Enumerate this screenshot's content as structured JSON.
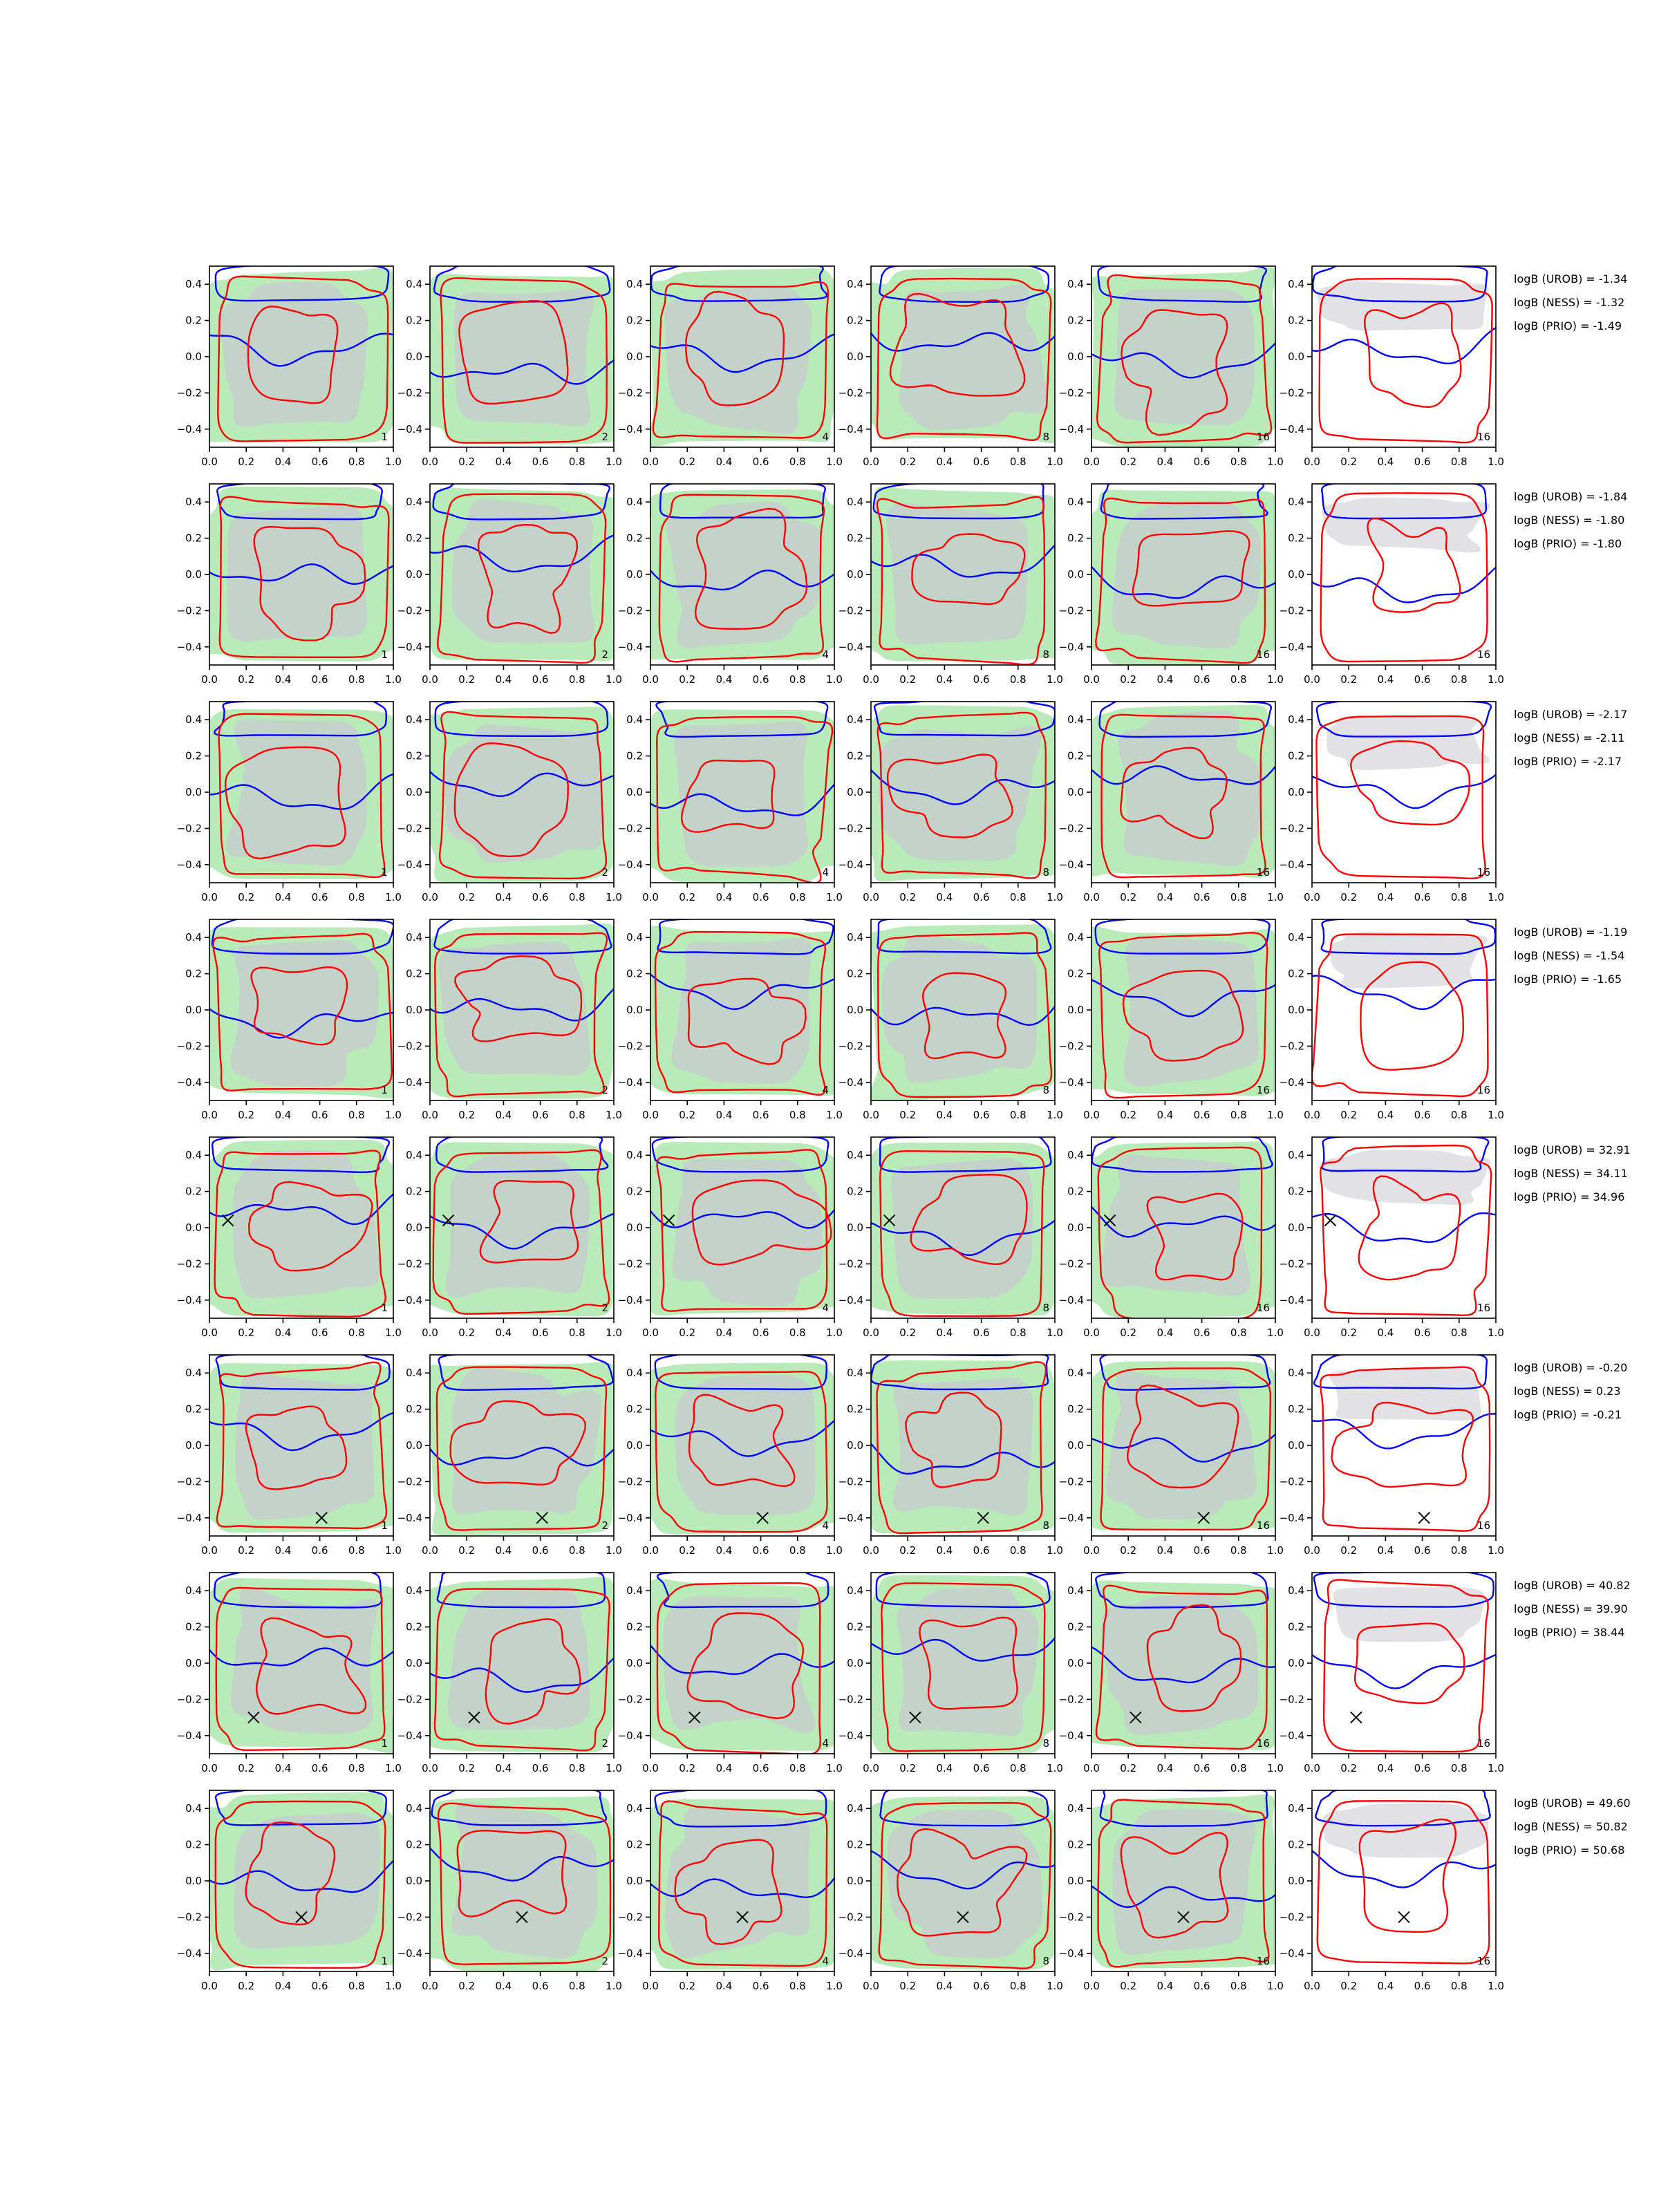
{
  "figure": {
    "colors": {
      "blue_contour": "#0000ff",
      "red_contour": "#ff0000",
      "green_fill": "#b9ebb9",
      "gray_fill": "#c9c9d2",
      "marker": "#000000"
    },
    "column_labels": [
      "1",
      "2",
      "4",
      "8",
      "16",
      "16"
    ],
    "icons": {
      "true_point": "x-marker-icon"
    }
  },
  "chart_data": [
    {
      "type": "contour-grid",
      "row": 1,
      "panel_labels": [
        "1",
        "2",
        "4",
        "8",
        "16",
        "16"
      ],
      "xlim": [
        0.0,
        1.0
      ],
      "ylim": [
        -0.5,
        0.5
      ],
      "x_ticks": [
        "0.0",
        "0.2",
        "0.4",
        "0.6",
        "0.8",
        "1.0"
      ],
      "y_ticks": [
        "0.4",
        "0.2",
        "0.0",
        "−0.2",
        "−0.4"
      ],
      "true_point": null,
      "annotations": [
        "logB (UROB) = -1.34",
        "logB (NESS) = -1.32",
        "logB (PRIO) = -1.49"
      ]
    },
    {
      "type": "contour-grid",
      "row": 2,
      "panel_labels": [
        "1",
        "2",
        "4",
        "8",
        "16",
        "16"
      ],
      "xlim": [
        0.0,
        1.0
      ],
      "ylim": [
        -0.5,
        0.5
      ],
      "x_ticks": [
        "0.0",
        "0.2",
        "0.4",
        "0.6",
        "0.8",
        "1.0"
      ],
      "y_ticks": [
        "0.4",
        "0.2",
        "0.0",
        "−0.2",
        "−0.4"
      ],
      "true_point": null,
      "annotations": [
        "logB (UROB) = -1.84",
        "logB (NESS) = -1.80",
        "logB (PRIO) = -1.80"
      ]
    },
    {
      "type": "contour-grid",
      "row": 3,
      "panel_labels": [
        "1",
        "2",
        "4",
        "8",
        "16",
        "16"
      ],
      "xlim": [
        0.0,
        1.0
      ],
      "ylim": [
        -0.5,
        0.5
      ],
      "x_ticks": [
        "0.0",
        "0.2",
        "0.4",
        "0.6",
        "0.8",
        "1.0"
      ],
      "y_ticks": [
        "0.4",
        "0.2",
        "0.0",
        "−0.2",
        "−0.4"
      ],
      "true_point": null,
      "annotations": [
        "logB (UROB) = -2.17",
        "logB (NESS) = -2.11",
        "logB (PRIO) = -2.17"
      ]
    },
    {
      "type": "contour-grid",
      "row": 4,
      "panel_labels": [
        "1",
        "2",
        "4",
        "8",
        "16",
        "16"
      ],
      "xlim": [
        0.0,
        1.0
      ],
      "ylim": [
        -0.5,
        0.5
      ],
      "x_ticks": [
        "0.0",
        "0.2",
        "0.4",
        "0.6",
        "0.8",
        "1.0"
      ],
      "y_ticks": [
        "0.4",
        "0.2",
        "0.0",
        "−0.2",
        "−0.4"
      ],
      "true_point": null,
      "annotations": [
        "logB (UROB) = -1.19",
        "logB (NESS) = -1.54",
        "logB (PRIO) = -1.65"
      ]
    },
    {
      "type": "contour-grid",
      "row": 5,
      "panel_labels": [
        "1",
        "2",
        "4",
        "8",
        "16",
        "16"
      ],
      "xlim": [
        0.0,
        1.0
      ],
      "ylim": [
        -0.5,
        0.5
      ],
      "x_ticks": [
        "0.0",
        "0.2",
        "0.4",
        "0.6",
        "0.8",
        "1.0"
      ],
      "y_ticks": [
        "0.4",
        "0.2",
        "0.0",
        "−0.2",
        "−0.4"
      ],
      "true_point": {
        "x": 0.1,
        "y": 0.04
      },
      "annotations": [
        "logB (UROB) = 32.91",
        "logB (NESS) = 34.11",
        "logB (PRIO) = 34.96"
      ]
    },
    {
      "type": "contour-grid",
      "row": 6,
      "panel_labels": [
        "1",
        "2",
        "4",
        "8",
        "16",
        "16"
      ],
      "xlim": [
        0.0,
        1.0
      ],
      "ylim": [
        -0.5,
        0.5
      ],
      "x_ticks": [
        "0.0",
        "0.2",
        "0.4",
        "0.6",
        "0.8",
        "1.0"
      ],
      "y_ticks": [
        "0.4",
        "0.2",
        "0.0",
        "−0.2",
        "−0.4"
      ],
      "true_point": {
        "x": 0.61,
        "y": -0.4
      },
      "annotations": [
        "logB (UROB) = -0.20",
        "logB (NESS) = 0.23",
        "logB (PRIO) = -0.21"
      ]
    },
    {
      "type": "contour-grid",
      "row": 7,
      "panel_labels": [
        "1",
        "2",
        "4",
        "8",
        "16",
        "16"
      ],
      "xlim": [
        0.0,
        1.0
      ],
      "ylim": [
        -0.5,
        0.5
      ],
      "x_ticks": [
        "0.0",
        "0.2",
        "0.4",
        "0.6",
        "0.8",
        "1.0"
      ],
      "y_ticks": [
        "0.4",
        "0.2",
        "0.0",
        "−0.2",
        "−0.4"
      ],
      "true_point": {
        "x": 0.24,
        "y": -0.3
      },
      "annotations": [
        "logB (UROB) = 40.82",
        "logB (NESS) = 39.90",
        "logB (PRIO) = 38.44"
      ]
    },
    {
      "type": "contour-grid",
      "row": 8,
      "panel_labels": [
        "1",
        "2",
        "4",
        "8",
        "16",
        "16"
      ],
      "xlim": [
        0.0,
        1.0
      ],
      "ylim": [
        -0.5,
        0.5
      ],
      "x_ticks": [
        "0.0",
        "0.2",
        "0.4",
        "0.6",
        "0.8",
        "1.0"
      ],
      "y_ticks": [
        "0.4",
        "0.2",
        "0.0",
        "−0.2",
        "−0.4"
      ],
      "true_point": {
        "x": 0.5,
        "y": -0.2
      },
      "annotations": [
        "logB (UROB) = 49.60",
        "logB (NESS) = 50.82",
        "logB (PRIO) = 50.68"
      ]
    }
  ]
}
